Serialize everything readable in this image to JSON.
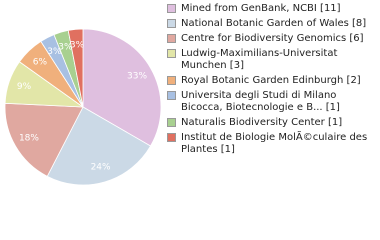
{
  "chart_data": {
    "type": "pie",
    "series": [
      {
        "names": [
          "Mined from GenBank, NCBI [11]",
          "National Botanic Garden of Wales [8]",
          "Centre for Biodiversity Genomics [6]",
          "Ludwig-Maximilians-Universitat Munchen [3]",
          "Royal Botanic Garden Edinburgh [2]",
          "Universita degli Studi di Milano Bicocca, Biotecnologie e B... [1]",
          "Naturalis Biodiversity Center [1]",
          "Institut de Biologie MolÃ©culaire des Plantes [1]"
        ],
        "values": [
          33,
          24,
          18,
          9,
          6,
          3,
          3,
          3
        ],
        "value_labels": [
          "33%",
          "24%",
          "18%",
          "9%",
          "6%",
          "3%",
          "3%",
          "3%"
        ],
        "colors": [
          "#dfbfdf",
          "#cbd9e6",
          "#e0a8a0",
          "#e2e6a8",
          "#f0b07c",
          "#a8c0e2",
          "#a8d090",
          "#e07060"
        ]
      }
    ]
  }
}
